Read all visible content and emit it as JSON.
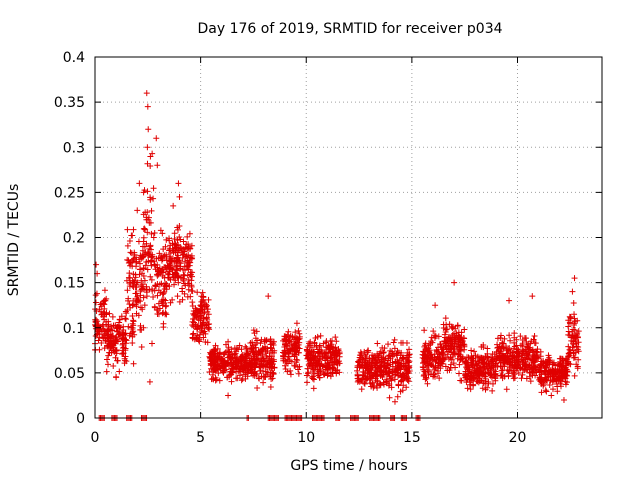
{
  "chart_data": {
    "type": "scatter",
    "title": "Day 176 of 2019, SRMTID for receiver p034",
    "xlabel": "GPS time / hours",
    "ylabel": "SRMTID / TECUs",
    "xlim": [
      0,
      24
    ],
    "ylim": [
      0,
      0.4
    ],
    "x_ticks": [
      0,
      5,
      10,
      15,
      20
    ],
    "x_tick_labels": [
      "0",
      "5",
      "10",
      "15",
      "20"
    ],
    "y_ticks": [
      0,
      0.05,
      0.1,
      0.15,
      0.2,
      0.25,
      0.3,
      0.35,
      0.4
    ],
    "y_tick_labels": [
      "0",
      "0.05",
      "0.1",
      "0.15",
      "0.2",
      "0.25",
      "0.3",
      "0.35",
      "0.4"
    ],
    "grid": true,
    "marker": "+",
    "series_color": "#e00000",
    "series": [
      {
        "name": "SRMTID",
        "segments": [
          {
            "t0": 0.0,
            "t1": 0.55,
            "mean": 0.105,
            "spread": 0.03
          },
          {
            "t0": 0.55,
            "t1": 1.5,
            "mean": 0.085,
            "spread": 0.025
          },
          {
            "t0": 1.5,
            "t1": 2.3,
            "mean": 0.14,
            "spread": 0.055
          },
          {
            "t0": 2.3,
            "t1": 2.8,
            "mean": 0.19,
            "spread": 0.08
          },
          {
            "t0": 2.8,
            "t1": 3.4,
            "mean": 0.15,
            "spread": 0.05
          },
          {
            "t0": 3.4,
            "t1": 4.6,
            "mean": 0.17,
            "spread": 0.035
          },
          {
            "t0": 4.6,
            "t1": 5.4,
            "mean": 0.11,
            "spread": 0.025
          },
          {
            "t0": 5.4,
            "t1": 7.5,
            "mean": 0.06,
            "spread": 0.018
          },
          {
            "t0": 7.5,
            "t1": 8.5,
            "mean": 0.065,
            "spread": 0.022
          },
          {
            "t0": 8.9,
            "t1": 9.7,
            "mean": 0.075,
            "spread": 0.02
          },
          {
            "t0": 10.0,
            "t1": 11.0,
            "mean": 0.065,
            "spread": 0.02
          },
          {
            "t0": 11.0,
            "t1": 11.6,
            "mean": 0.065,
            "spread": 0.018
          },
          {
            "t0": 12.4,
            "t1": 13.1,
            "mean": 0.055,
            "spread": 0.018
          },
          {
            "t0": 13.1,
            "t1": 14.9,
            "mean": 0.055,
            "spread": 0.02
          },
          {
            "t0": 15.5,
            "t1": 16.5,
            "mean": 0.065,
            "spread": 0.02
          },
          {
            "t0": 16.5,
            "t1": 17.5,
            "mean": 0.08,
            "spread": 0.025
          },
          {
            "t0": 17.5,
            "t1": 19.0,
            "mean": 0.055,
            "spread": 0.018
          },
          {
            "t0": 19.0,
            "t1": 21.0,
            "mean": 0.065,
            "spread": 0.022
          },
          {
            "t0": 21.0,
            "t1": 22.4,
            "mean": 0.05,
            "spread": 0.016
          },
          {
            "t0": 22.4,
            "t1": 22.9,
            "mean": 0.09,
            "spread": 0.03
          }
        ],
        "outliers": [
          [
            2.45,
            0.36
          ],
          [
            2.5,
            0.345
          ],
          [
            2.52,
            0.32
          ],
          [
            2.48,
            0.3
          ],
          [
            2.9,
            0.31
          ],
          [
            2.95,
            0.28
          ],
          [
            2.1,
            0.26
          ],
          [
            2.3,
            0.25
          ],
          [
            3.95,
            0.26
          ],
          [
            4.0,
            0.245
          ],
          [
            2.0,
            0.23
          ],
          [
            3.7,
            0.235
          ],
          [
            17.0,
            0.15
          ],
          [
            22.7,
            0.155
          ],
          [
            22.6,
            0.14
          ],
          [
            0.05,
            0.17
          ],
          [
            0.1,
            0.16
          ],
          [
            8.2,
            0.135
          ],
          [
            16.1,
            0.125
          ],
          [
            19.6,
            0.13
          ],
          [
            20.7,
            0.135
          ],
          [
            1.0,
            0.045
          ],
          [
            2.6,
            0.04
          ],
          [
            6.3,
            0.025
          ],
          [
            14.2,
            0.018
          ],
          [
            18.8,
            0.03
          ],
          [
            21.6,
            0.025
          ],
          [
            22.2,
            0.02
          ]
        ],
        "zero_runs": [
          [
            0.2,
            0.45
          ],
          [
            0.8,
            1.1
          ],
          [
            1.5,
            1.8
          ],
          [
            2.2,
            2.5
          ],
          [
            7.2,
            7.3
          ],
          [
            8.2,
            8.7
          ],
          [
            9.0,
            9.8
          ],
          [
            10.3,
            10.9
          ],
          [
            11.4,
            11.6
          ],
          [
            12.1,
            12.5
          ],
          [
            13.0,
            13.5
          ],
          [
            14.0,
            14.2
          ],
          [
            14.5,
            14.8
          ],
          [
            15.2,
            15.4
          ]
        ]
      }
    ]
  }
}
